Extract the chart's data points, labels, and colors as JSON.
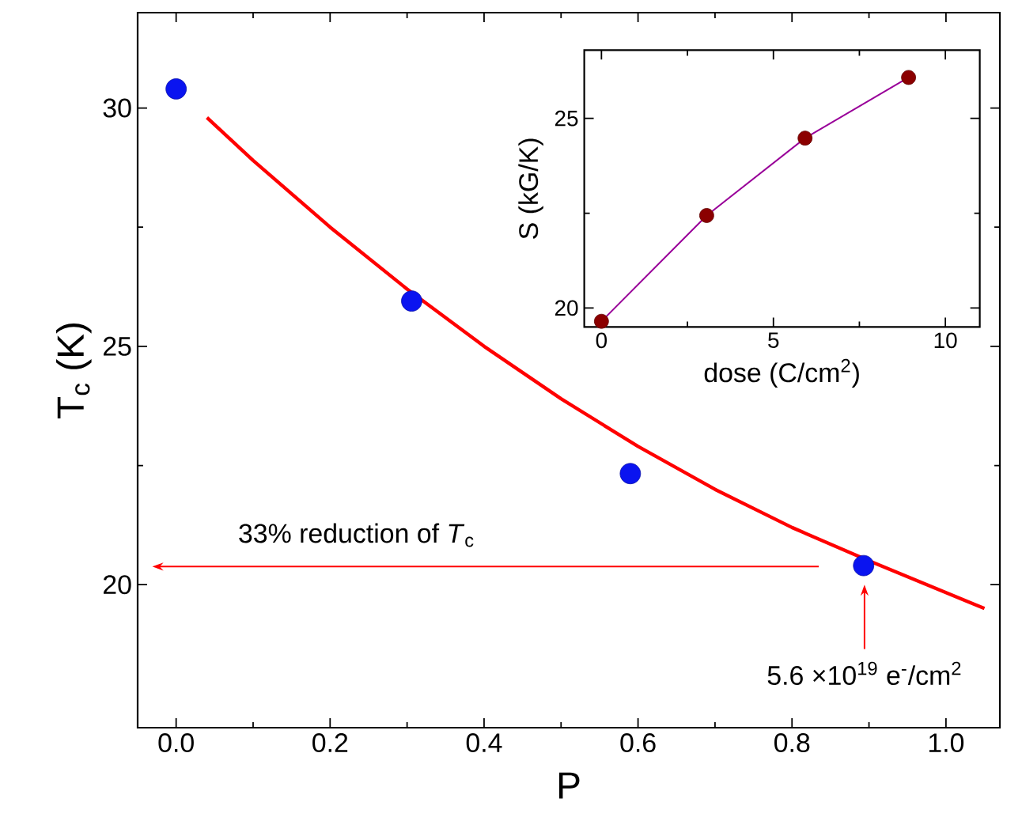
{
  "chart_data": [
    {
      "type": "scatter",
      "xlabel": "P",
      "ylabel": "T$_{c}$ (K)",
      "xlim": [
        -0.05,
        1.07
      ],
      "ylim": [
        17,
        32
      ],
      "xticks": [
        {
          "value": 0,
          "label": "0.0"
        },
        0.2,
        0.4,
        0.6,
        0.8,
        {
          "value": 1,
          "label": "1.0"
        }
      ],
      "yticks": [
        20,
        25,
        30
      ],
      "series": [
        {
          "marker": "circle",
          "color": "#0a14f0",
          "x": [
            0,
            0.306,
            0.59,
            0.893
          ],
          "values": [
            30.4,
            25.95,
            22.33,
            20.4
          ]
        },
        {
          "type": "line",
          "color": "#ff0000",
          "x": [
            0.04,
            0.1,
            0.2,
            0.3,
            0.4,
            0.5,
            0.6,
            0.7,
            0.8,
            0.9,
            1.05
          ],
          "values": [
            29.8,
            28.9,
            27.5,
            26.2,
            25.0,
            23.9,
            22.9,
            22.0,
            21.2,
            20.5,
            19.5
          ]
        }
      ],
      "annotations": [
        "33% reduction of *T*$_{c}$",
        "5.6 ×10$^{19}$ e$^{-}$/cm$^{2}$"
      ]
    },
    {
      "type": "line",
      "xlabel": "dose (C/cm$^{2}$)",
      "ylabel": "S (kG/K)",
      "xlim": [
        -0.5,
        11
      ],
      "ylim": [
        19.5,
        26.8
      ],
      "xticks": [
        0,
        5,
        10
      ],
      "yticks": [
        20,
        25
      ],
      "series": [
        {
          "color": "#990099",
          "x": [
            0,
            3.06,
            5.92,
            8.93
          ],
          "values": [
            19.65,
            22.44,
            24.48,
            26.08
          ]
        },
        {
          "type": "scatter",
          "marker": "circle",
          "color": "#8b0000",
          "x": [
            0,
            3.06,
            5.92,
            8.93
          ],
          "values": [
            19.65,
            22.44,
            24.48,
            26.08
          ]
        }
      ]
    }
  ]
}
